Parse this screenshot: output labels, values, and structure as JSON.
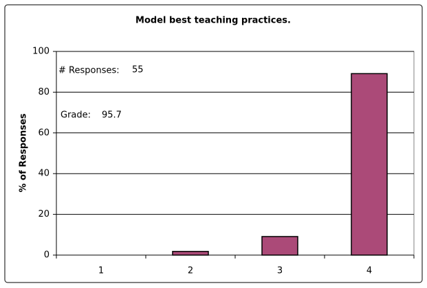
{
  "chart_data": {
    "type": "bar",
    "title": "Model best teaching practices.",
    "y_label": "% of Responses",
    "annotations": [
      {
        "text": "# Responses:",
        "value": 55
      },
      {
        "text": "Grade:",
        "value": 95.7
      }
    ],
    "categories": [
      "1",
      "2",
      "3",
      "4"
    ],
    "values": [
      0,
      1.8,
      9.1,
      89.1
    ],
    "color": "#ab4a78",
    "ylim": [
      0,
      100
    ],
    "yticks": [
      0,
      20,
      40,
      60,
      80,
      100
    ],
    "grid": true
  }
}
